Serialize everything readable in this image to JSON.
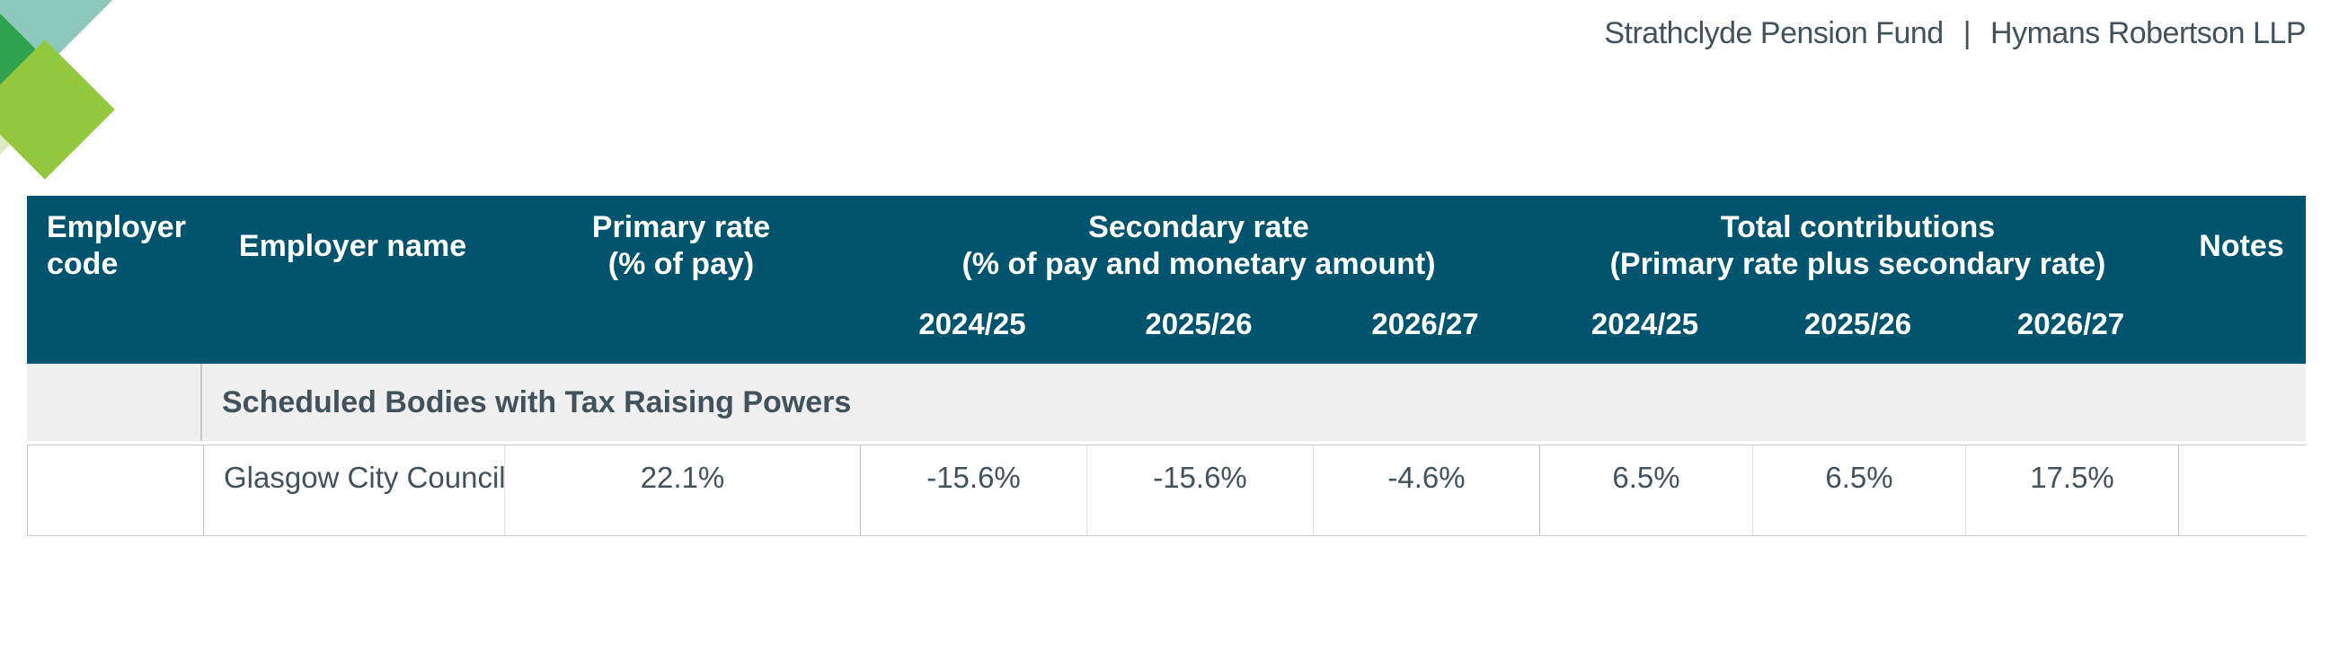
{
  "masthead": {
    "fund": "Strathclyde Pension Fund",
    "separator": "|",
    "firm": "Hymans Robertson LLP"
  },
  "logo": {
    "icon": "diamond-logo",
    "colors": {
      "teal": "#8BC8BB",
      "green": "#2FA14F",
      "lime": "#93C83E",
      "pale": "#DCE9C1"
    }
  },
  "colors": {
    "header_teal": "#00546E",
    "text_slate": "#42525C",
    "section_gray": "#EFEFEF",
    "border_gray": "#C8C8C8"
  },
  "table": {
    "headers": {
      "employer_code": "Employer code",
      "employer_name": "Employer name",
      "primary_rate_line1": "Primary rate",
      "primary_rate_line2": "(% of pay)",
      "secondary_rate_line1": "Secondary rate",
      "secondary_rate_line2": "(% of pay and monetary amount)",
      "total_line1": "Total contributions",
      "total_line2": "(Primary rate plus secondary rate)",
      "notes": "Notes"
    },
    "years": [
      "2024/25",
      "2025/26",
      "2026/27"
    ],
    "section_title": "Scheduled Bodies with Tax Raising Powers",
    "rows": [
      {
        "employer_code": "",
        "employer_name": "Glasgow City Council",
        "primary_rate": "22.1%",
        "secondary": [
          "-15.6%",
          "-15.6%",
          "-4.6%"
        ],
        "total": [
          "6.5%",
          "6.5%",
          "17.5%"
        ],
        "notes": ""
      }
    ]
  }
}
